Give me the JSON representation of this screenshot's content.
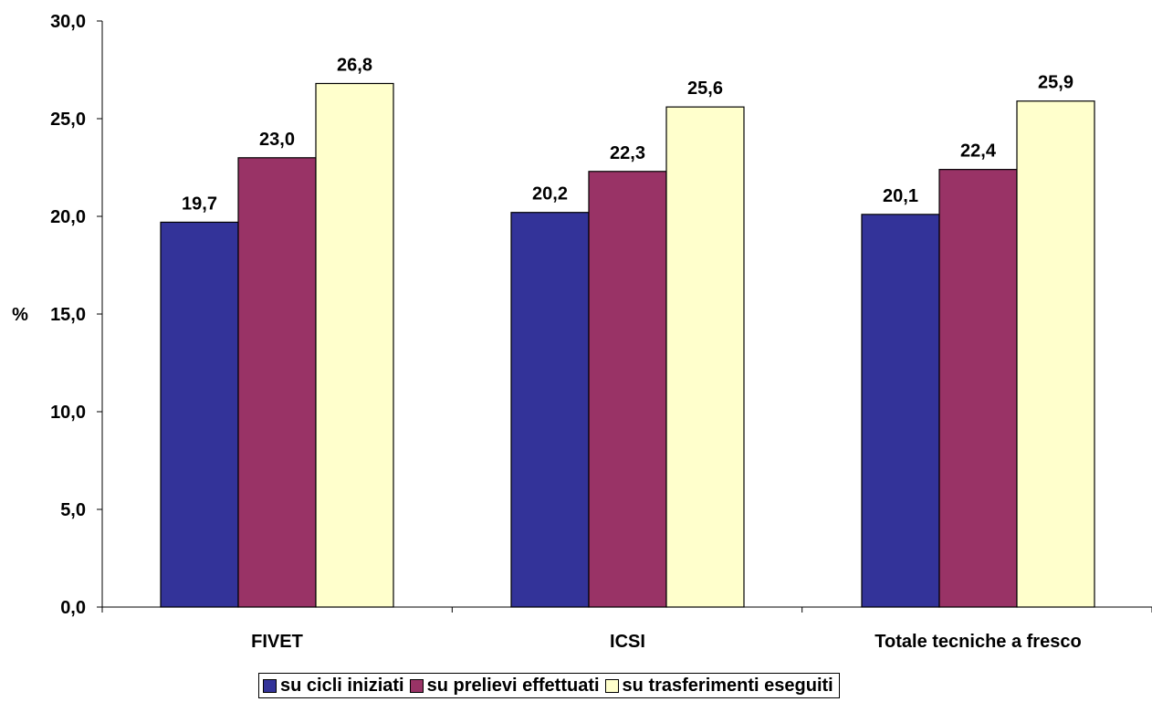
{
  "chart_data": {
    "type": "bar",
    "categories": [
      "FIVET",
      "ICSI",
      "Totale tecniche a fresco"
    ],
    "series": [
      {
        "name": "su cicli iniziati",
        "values": [
          19.7,
          20.2,
          20.1
        ],
        "color": "#333399"
      },
      {
        "name": "su prelievi effettuati",
        "values": [
          23.0,
          22.3,
          22.4
        ],
        "color": "#993366"
      },
      {
        "name": "su trasferimenti eseguiti",
        "values": [
          26.8,
          25.6,
          25.9
        ],
        "color": "#ffffcc"
      }
    ],
    "data_labels": [
      [
        "19,7",
        "20,2",
        "20,1"
      ],
      [
        "23,0",
        "22,3",
        "22,4"
      ],
      [
        "26,8",
        "25,6",
        "25,9"
      ]
    ],
    "ylabel": "%",
    "ylim": [
      0,
      30
    ],
    "yticks": [
      0,
      5,
      10,
      15,
      20,
      25,
      30
    ],
    "ytick_labels": [
      "0,0",
      "5,0",
      "10,0",
      "15,0",
      "20,0",
      "25,0",
      "30,0"
    ],
    "grid": false,
    "legend_position": "bottom"
  }
}
